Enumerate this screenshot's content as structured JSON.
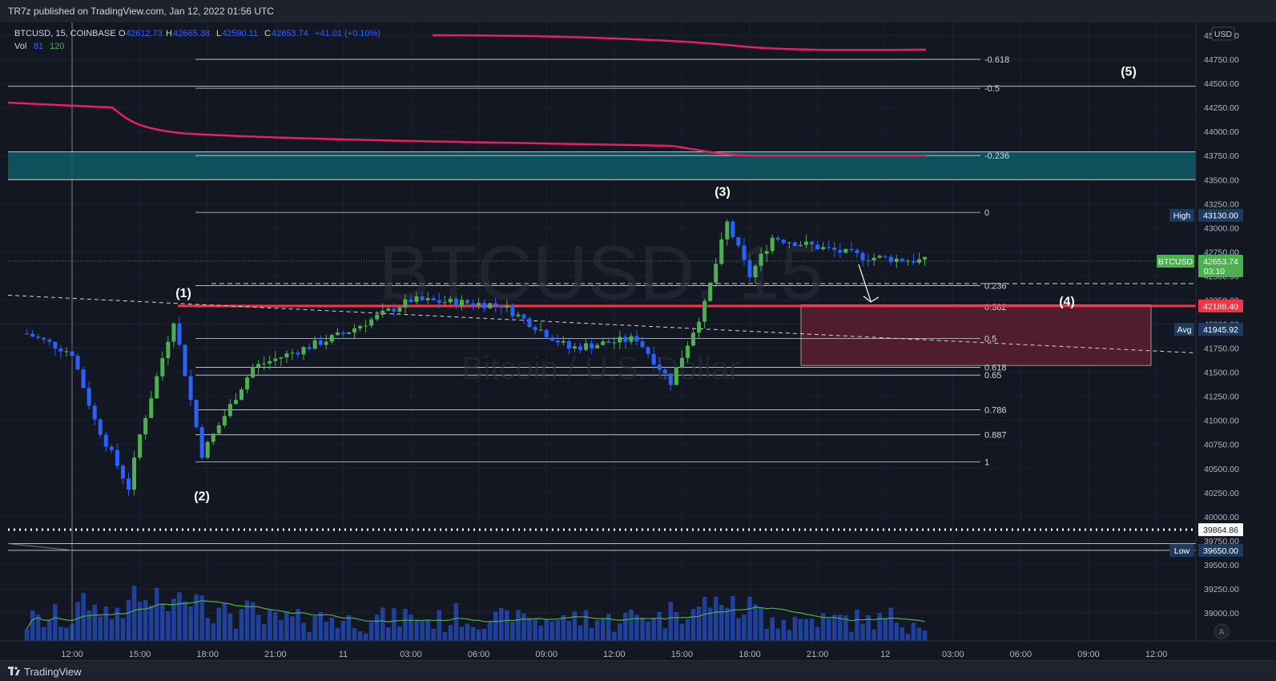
{
  "header": {
    "published": "TR7z published on TradingView.com, Jan 12, 2022 01:56 UTC"
  },
  "legend": {
    "symbol": "BTCUSD, 15, COINBASE",
    "o_label": "O",
    "o_value": "42612.73",
    "h_label": "H",
    "h_value": "42665.38",
    "l_label": "L",
    "l_value": "42590.11",
    "c_label": "C",
    "c_value": "42653.74",
    "change": "+41.01 (+0.10%)",
    "vol_label": "Vol",
    "vol_value1": "81",
    "vol_value2": "120"
  },
  "watermark": {
    "line1": "BTCUSD, 15",
    "line2": "Bitcoin / U.S. Dollar"
  },
  "footer": {
    "brand": "TradingView",
    "auto_label": "A"
  },
  "price_axis": {
    "currency": "USD",
    "ticks": [
      "45000.00",
      "44750.00",
      "44500.00",
      "44250.00",
      "44000.00",
      "43750.00",
      "43500.00",
      "43250.00",
      "43000.00",
      "42750.00",
      "42500.00",
      "42250.00",
      "42000.00",
      "41750.00",
      "41500.00",
      "41250.00",
      "41000.00",
      "40750.00",
      "40500.00",
      "40250.00",
      "40000.00",
      "39750.00",
      "39500.00",
      "39250.00",
      "39000.00"
    ],
    "labels": {
      "high_tag": "High",
      "high_value": "43130.00",
      "symbol_tag": "BTCUSD",
      "last_value": "42653.74",
      "countdown": "03:10",
      "red_value": "42188.40",
      "avg_tag": "Avg",
      "avg_value": "41945.92",
      "dotted_value": "39864.86",
      "low_tag": "Low",
      "low_value": "39650.00"
    }
  },
  "time_axis": {
    "ticks": [
      "12:00",
      "15:00",
      "18:00",
      "21:00",
      "11",
      "03:00",
      "06:00",
      "09:00",
      "12:00",
      "15:00",
      "18:00",
      "21:00",
      "12",
      "03:00",
      "06:00",
      "09:00",
      "12:00"
    ]
  },
  "fib": {
    "upper": [
      {
        "label": "-0.618",
        "price": 44750
      },
      {
        "label": "-0.5",
        "price": 44450
      },
      {
        "label": "-0.236",
        "price": 43750
      }
    ],
    "lower": [
      {
        "label": "0",
        "price": 43160
      },
      {
        "label": "0.236",
        "price": 42400
      },
      {
        "label": "0.382",
        "price": 42180
      },
      {
        "label": "0.5",
        "price": 41850
      },
      {
        "label": "0.618",
        "price": 41550
      },
      {
        "label": "0.65",
        "price": 41470
      },
      {
        "label": "0.786",
        "price": 41110
      },
      {
        "label": "0.887",
        "price": 40850
      },
      {
        "label": "1",
        "price": 40570
      }
    ]
  },
  "waves": {
    "w1": "(1)",
    "w2": "(2)",
    "w3": "(3)",
    "w4": "(4)",
    "w5": "(5)"
  },
  "colors": {
    "bg": "#131722",
    "up": "#26a69a",
    "upBright": "#4caf50",
    "down": "#2962ff",
    "ma": "#e91e63",
    "red": "#f23645",
    "teal": "#0e5a66",
    "vol": "#2962ff",
    "volma": "#4caf50"
  },
  "chart_data": {
    "type": "candlestick",
    "symbol": "BTCUSD",
    "interval": "15",
    "exchange": "COINBASE",
    "price_range": [
      38900,
      45100
    ],
    "price_series_anchors": [
      {
        "t": "Jan 10 10:00",
        "price": 41900
      },
      {
        "t": "Jan 10 12:00",
        "price": 41700
      },
      {
        "t": "Jan 10 13:00",
        "price": 41000
      },
      {
        "t": "Jan 10 14:30",
        "price": 40300
      },
      {
        "t": "Jan 10 15:00",
        "price": 40850
      },
      {
        "t": "Jan 10 16:30",
        "price": 42050
      },
      {
        "t": "Jan 10 17:45",
        "price": 40650
      },
      {
        "t": "Jan 10 20:00",
        "price": 41550
      },
      {
        "t": "Jan 11 00:00",
        "price": 41900
      },
      {
        "t": "Jan 11 03:00",
        "price": 42250
      },
      {
        "t": "Jan 11 07:00",
        "price": 42200
      },
      {
        "t": "Jan 11 10:00",
        "price": 41750
      },
      {
        "t": "Jan 11 13:00",
        "price": 41850
      },
      {
        "t": "Jan 11 14:30",
        "price": 41400
      },
      {
        "t": "Jan 11 16:00",
        "price": 42200
      },
      {
        "t": "Jan 11 17:00",
        "price": 43050
      },
      {
        "t": "Jan 11 18:00",
        "price": 42500
      },
      {
        "t": "Jan 11 19:00",
        "price": 42900
      },
      {
        "t": "Jan 11 23:00",
        "price": 42700
      },
      {
        "t": "Jan 12 01:45",
        "price": 42653.74
      }
    ],
    "ma_upper": [
      45000,
      44950,
      44890,
      44850
    ],
    "ma_lower": [
      44300,
      43950,
      43900,
      43750
    ],
    "levels": {
      "high": 43130,
      "last": 42653.74,
      "red": 42188.4,
      "avg": 41945.92,
      "dotted": 39864.86,
      "low": 39650
    },
    "zones": [
      {
        "name": "teal-zone",
        "from": 43500,
        "to": 43790
      },
      {
        "name": "wave4-target-zone",
        "from": 41570,
        "to": 42200
      }
    ],
    "volume": {
      "label": "Vol",
      "ma": 81,
      "last": 120
    }
  }
}
